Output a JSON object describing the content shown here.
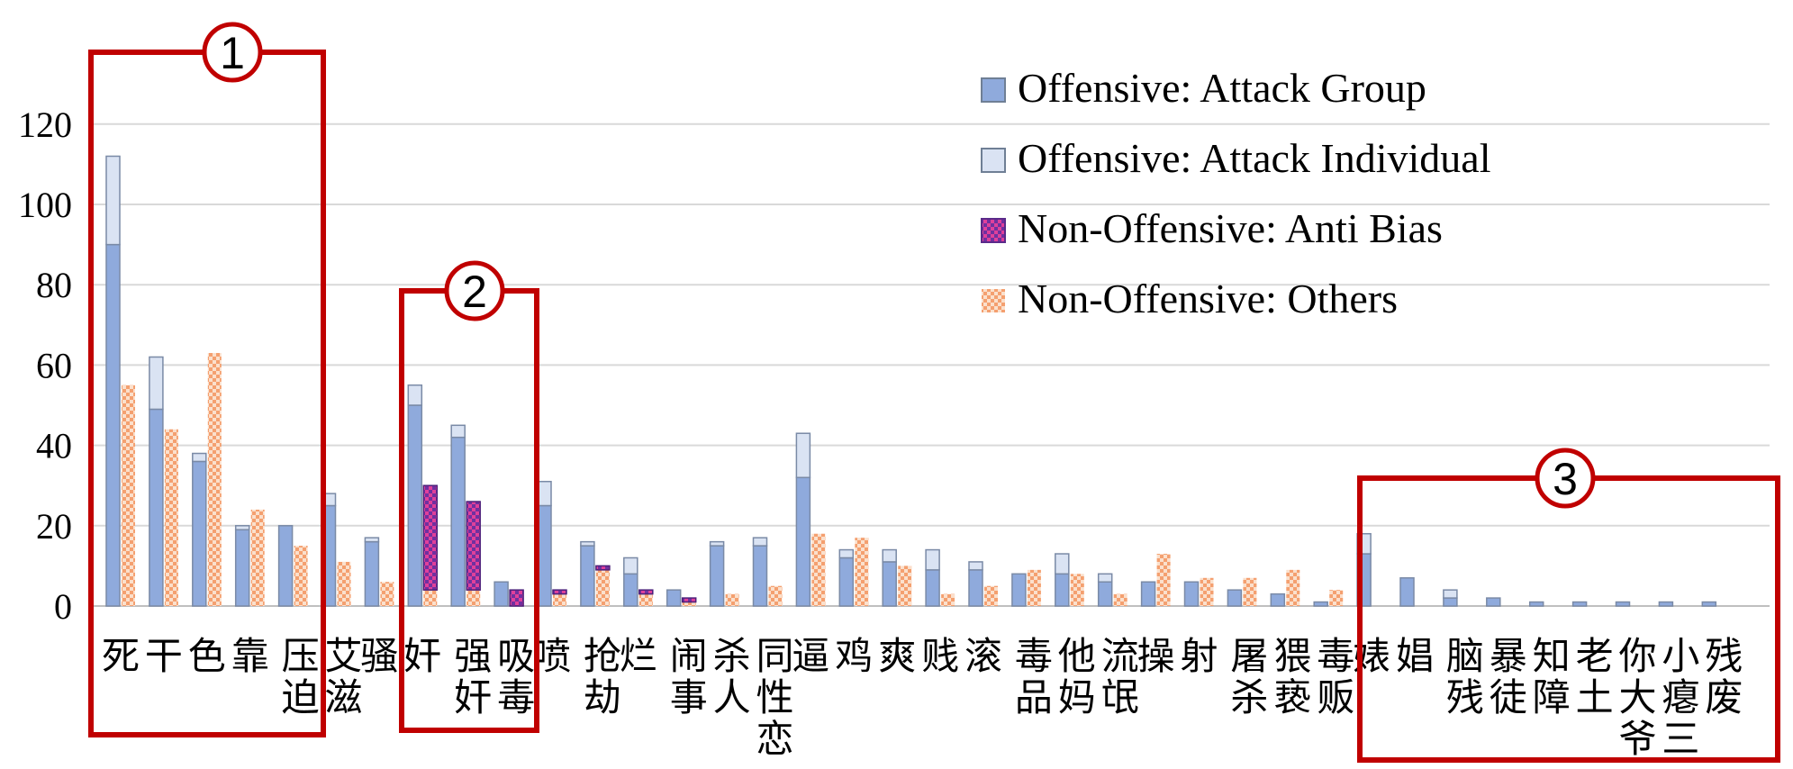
{
  "chart_data": {
    "type": "bar",
    "title": "",
    "xlabel": "",
    "ylabel": "",
    "ylim": [
      0,
      135
    ],
    "yticks": [
      0,
      20,
      40,
      60,
      80,
      100,
      120
    ],
    "grid": true,
    "legend_position": "top-right",
    "categories": [
      "死",
      "干",
      "色",
      "靠",
      "压迫",
      "艾滋",
      "骚",
      "奸",
      "强奸",
      "吸毒",
      "喷",
      "抢劫",
      "烂",
      "闹事",
      "杀人",
      "同性恋",
      "逼",
      "鸡",
      "爽",
      "贱",
      "滚",
      "毒品",
      "他妈",
      "流氓",
      "操",
      "射",
      "屠杀",
      "猥亵",
      "毒贩",
      "婊",
      "娼",
      "脑残",
      "暴徒",
      "知障",
      "老土",
      "你大爷",
      "小瘪三",
      "残废"
    ],
    "series": [
      {
        "name": "Offensive: Attack Group",
        "color": "#8faadc",
        "values": [
          90,
          49,
          36,
          19,
          20,
          25,
          16,
          50,
          42,
          6,
          25,
          15,
          8,
          4,
          15,
          15,
          32,
          12,
          11,
          9,
          9,
          8,
          8,
          6,
          6,
          6,
          4,
          3,
          1,
          13,
          7,
          2,
          2,
          1,
          1,
          1,
          1,
          1
        ]
      },
      {
        "name": "Offensive: Attack Individual",
        "color": "#dae3f3",
        "values": [
          22,
          13,
          2,
          1,
          0,
          3,
          1,
          5,
          3,
          0,
          6,
          1,
          4,
          0,
          1,
          2,
          11,
          2,
          3,
          5,
          2,
          0,
          5,
          2,
          0,
          0,
          0,
          0,
          0,
          5,
          0,
          2,
          0,
          0,
          0,
          0,
          0,
          0
        ]
      },
      {
        "name": "Non-Offensive: Anti Bias",
        "color": "#7030a0",
        "values": [
          0,
          0,
          0,
          0,
          0,
          0,
          0,
          26,
          22,
          4,
          1,
          1,
          1,
          1,
          0,
          0,
          0,
          0,
          0,
          0,
          0,
          0,
          0,
          0,
          0,
          0,
          0,
          0,
          0,
          0,
          0,
          0,
          0,
          0,
          0,
          0,
          0,
          0
        ]
      },
      {
        "name": "Non-Offensive: Others",
        "color": "#f4b183",
        "values": [
          55,
          44,
          63,
          24,
          15,
          11,
          6,
          4,
          4,
          0,
          3,
          9,
          3,
          1,
          3,
          5,
          18,
          17,
          10,
          3,
          5,
          9,
          8,
          3,
          13,
          7,
          7,
          9,
          4,
          0,
          0,
          0,
          0,
          0,
          0,
          0,
          0,
          0
        ]
      }
    ],
    "annotations": [
      {
        "label": "1",
        "first_category": 0,
        "last_category": 4
      },
      {
        "label": "2",
        "first_category": 7,
        "last_category": 9
      },
      {
        "label": "3",
        "first_category": 29,
        "last_category": 37
      }
    ]
  }
}
